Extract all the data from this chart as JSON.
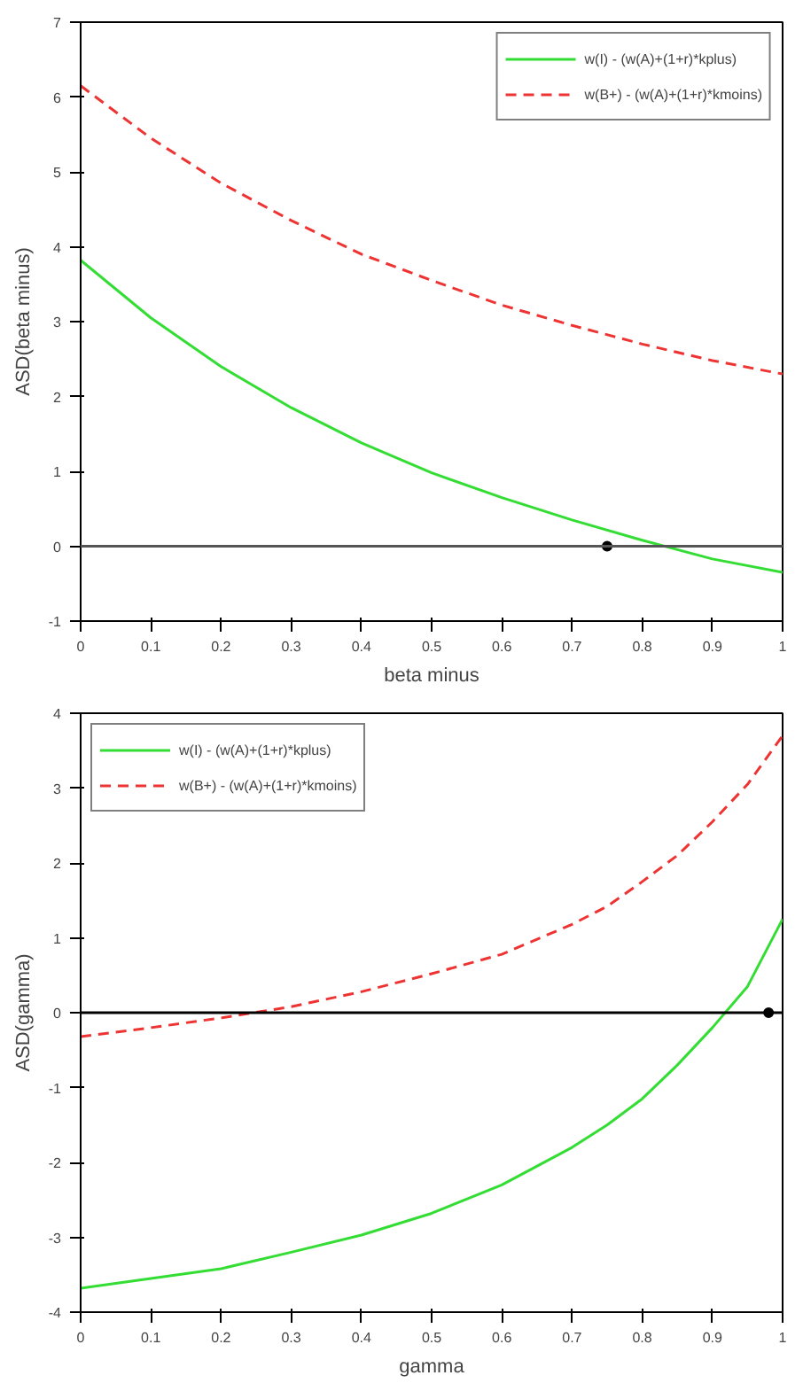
{
  "chart_data": [
    {
      "type": "line",
      "xlabel": "beta minus",
      "ylabel": "ASD(beta minus)",
      "xlim": [
        0,
        1
      ],
      "ylim": [
        -1,
        7
      ],
      "xticks": [
        0,
        0.1,
        0.2,
        0.3,
        0.4,
        0.5,
        0.6,
        0.7,
        0.8,
        0.9,
        1
      ],
      "yticks": [
        -1,
        0,
        1,
        2,
        3,
        4,
        5,
        6,
        7
      ],
      "grid": false,
      "legend": "top right",
      "ref_lines": [
        {
          "axis": "y",
          "value": 0,
          "color": "#555555"
        }
      ],
      "series": [
        {
          "name": "w(I) - (w(A)+(1+r)*kplus)",
          "color": "#33dd33",
          "line_style": "solid",
          "x": [
            0,
            0.1,
            0.2,
            0.3,
            0.4,
            0.5,
            0.6,
            0.7,
            0.8,
            0.9,
            1
          ],
          "values": [
            3.82,
            3.05,
            2.4,
            1.85,
            1.38,
            0.98,
            0.65,
            0.35,
            0.08,
            -0.17,
            -0.35
          ]
        },
        {
          "name": "w(B+) - (w(A)+(1+r)*kmoins)",
          "color": "#ee3333",
          "line_style": "dashed",
          "x": [
            0,
            0.1,
            0.2,
            0.3,
            0.4,
            0.5,
            0.6,
            0.7,
            0.8,
            0.9,
            1
          ],
          "values": [
            6.15,
            5.45,
            4.85,
            4.35,
            3.9,
            3.55,
            3.22,
            2.95,
            2.7,
            2.48,
            2.3
          ]
        },
        {
          "type": "scatter",
          "color": "#000000",
          "marker": "circle",
          "x": [
            0.75
          ],
          "values": [
            0
          ]
        }
      ]
    },
    {
      "type": "line",
      "xlabel": "gamma",
      "ylabel": "ASD(gamma)",
      "xlim": [
        0,
        1
      ],
      "ylim": [
        -4,
        4
      ],
      "xticks": [
        0,
        0.1,
        0.2,
        0.3,
        0.4,
        0.5,
        0.6,
        0.7,
        0.8,
        0.9,
        1
      ],
      "yticks": [
        -4,
        -3,
        -2,
        -1,
        0,
        1,
        2,
        3,
        4
      ],
      "grid": false,
      "legend": "top left",
      "ref_lines": [
        {
          "axis": "y",
          "value": 0,
          "color": "#000000"
        }
      ],
      "series": [
        {
          "name": "w(I) - (w(A)+(1+r)*kplus)",
          "color": "#33dd33",
          "line_style": "solid",
          "x": [
            0,
            0.1,
            0.2,
            0.3,
            0.4,
            0.5,
            0.6,
            0.7,
            0.75,
            0.8,
            0.85,
            0.9,
            0.95,
            1
          ],
          "values": [
            -3.68,
            -3.55,
            -3.42,
            -3.2,
            -2.97,
            -2.68,
            -2.3,
            -1.8,
            -1.5,
            -1.15,
            -0.7,
            -0.2,
            0.35,
            1.25
          ]
        },
        {
          "name": "w(B+) - (w(A)+(1+r)*kmoins)",
          "color": "#ee3333",
          "line_style": "dashed",
          "x": [
            0,
            0.1,
            0.2,
            0.3,
            0.4,
            0.5,
            0.6,
            0.7,
            0.75,
            0.8,
            0.85,
            0.9,
            0.95,
            1
          ],
          "values": [
            -0.32,
            -0.2,
            -0.07,
            0.08,
            0.28,
            0.52,
            0.78,
            1.18,
            1.42,
            1.75,
            2.1,
            2.55,
            3.05,
            3.7
          ]
        },
        {
          "type": "scatter",
          "color": "#000000",
          "marker": "circle",
          "x": [
            0.98
          ],
          "values": [
            0
          ]
        }
      ]
    }
  ]
}
